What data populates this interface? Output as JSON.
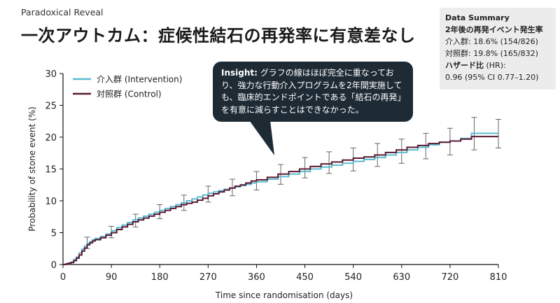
{
  "header": {
    "eyebrow": "Paradoxical Reveal",
    "title": "一次アウトカム：症候性結石の再発率に有意差なし"
  },
  "summary": {
    "heading": "Data Summary",
    "subheading": "2年後の再発イベント発生率",
    "intervention": "介入群: 18.6% (154/826)",
    "control": "対照群: 19.8% (165/832)",
    "hr_label": "ハザード比",
    "hr_suffix": " (HR):",
    "hr_value": "0.96 (95% CI 0.77–1.20)"
  },
  "callout": {
    "lead": "Insight:",
    "text": " グラフの線はほぼ完全に重なっており、強力な行動介入プログラムを2年間実施しても、臨床的エンドポイントである「結石の再発」を有意に減らすことはできなかった。"
  },
  "colors": {
    "intervention": "#5bbcd0",
    "control": "#5a1a33",
    "error_bar": "#666666",
    "axis": "#111111"
  },
  "chart_data": {
    "type": "line",
    "step": true,
    "xlabel": "Time since randomisation (days)",
    "ylabel": "Probability of stone event (%)",
    "xlim": [
      0,
      810
    ],
    "ylim": [
      0,
      30
    ],
    "xticks": [
      0,
      90,
      180,
      270,
      360,
      450,
      540,
      630,
      720,
      810
    ],
    "yticks": [
      0,
      5,
      10,
      15,
      20,
      25,
      30
    ],
    "legend_position": "top-left",
    "series": [
      {
        "name": "介入群 (Intervention)",
        "color_key": "intervention",
        "x": [
          0,
          5,
          10,
          15,
          20,
          25,
          30,
          35,
          40,
          45,
          50,
          55,
          60,
          70,
          80,
          90,
          100,
          110,
          120,
          130,
          140,
          150,
          160,
          170,
          180,
          190,
          200,
          210,
          220,
          230,
          240,
          250,
          260,
          270,
          280,
          290,
          300,
          310,
          320,
          330,
          340,
          350,
          360,
          380,
          400,
          420,
          440,
          460,
          480,
          500,
          520,
          540,
          560,
          580,
          600,
          620,
          640,
          660,
          680,
          700,
          720,
          740,
          760,
          780,
          800,
          810
        ],
        "y": [
          0,
          0.1,
          0.2,
          0.4,
          0.8,
          1.2,
          1.8,
          2.4,
          2.9,
          3.3,
          3.6,
          3.9,
          4.1,
          4.4,
          4.8,
          5.3,
          5.8,
          6.2,
          6.6,
          7.0,
          7.3,
          7.6,
          7.9,
          8.2,
          8.5,
          8.8,
          9.1,
          9.4,
          9.7,
          10.0,
          10.3,
          10.6,
          10.9,
          11.2,
          11.4,
          11.6,
          11.8,
          12.0,
          12.2,
          12.4,
          12.6,
          12.8,
          13.0,
          13.4,
          13.8,
          14.2,
          14.6,
          15.0,
          15.3,
          15.6,
          15.9,
          16.2,
          16.5,
          16.8,
          17.2,
          17.6,
          18.0,
          18.4,
          18.8,
          19.2,
          19.4,
          19.8,
          20.6,
          20.6,
          20.6,
          20.6
        ]
      },
      {
        "name": "対照群 (Control)",
        "color_key": "control",
        "x": [
          0,
          5,
          10,
          15,
          20,
          25,
          30,
          35,
          40,
          45,
          50,
          55,
          60,
          70,
          80,
          90,
          100,
          110,
          120,
          130,
          140,
          150,
          160,
          170,
          180,
          190,
          200,
          210,
          220,
          230,
          240,
          250,
          260,
          270,
          280,
          290,
          300,
          310,
          320,
          330,
          340,
          350,
          360,
          380,
          400,
          420,
          440,
          460,
          480,
          500,
          520,
          540,
          560,
          580,
          600,
          620,
          640,
          660,
          680,
          700,
          720,
          740,
          760,
          780,
          800,
          810
        ],
        "y": [
          0,
          0.1,
          0.2,
          0.3,
          0.6,
          1.0,
          1.5,
          2.1,
          2.6,
          3.1,
          3.4,
          3.7,
          3.9,
          4.2,
          4.6,
          5.0,
          5.5,
          5.9,
          6.3,
          6.7,
          7.0,
          7.3,
          7.6,
          7.9,
          8.2,
          8.5,
          8.8,
          9.1,
          9.4,
          9.6,
          9.8,
          10.1,
          10.4,
          10.8,
          11.1,
          11.4,
          11.7,
          12.0,
          12.3,
          12.5,
          12.8,
          13.1,
          13.3,
          13.7,
          14.2,
          14.6,
          15.0,
          15.4,
          15.8,
          16.1,
          16.4,
          16.7,
          16.9,
          17.2,
          17.6,
          18.0,
          18.4,
          18.7,
          19.0,
          19.2,
          19.4,
          19.7,
          20.1,
          20.1,
          20.1,
          20.1
        ]
      }
    ],
    "error_bars": [
      {
        "x": 45,
        "y": 3.3,
        "low": 2.5,
        "high": 4.3
      },
      {
        "x": 90,
        "y": 5.1,
        "low": 4.2,
        "high": 6.0
      },
      {
        "x": 135,
        "y": 6.9,
        "low": 5.9,
        "high": 7.9
      },
      {
        "x": 180,
        "y": 8.3,
        "low": 7.2,
        "high": 9.4
      },
      {
        "x": 225,
        "y": 9.7,
        "low": 8.5,
        "high": 10.9
      },
      {
        "x": 270,
        "y": 11.0,
        "low": 9.8,
        "high": 12.3
      },
      {
        "x": 315,
        "y": 12.1,
        "low": 10.8,
        "high": 13.4
      },
      {
        "x": 360,
        "y": 13.1,
        "low": 11.7,
        "high": 14.6
      },
      {
        "x": 405,
        "y": 14.1,
        "low": 12.6,
        "high": 15.7
      },
      {
        "x": 450,
        "y": 15.2,
        "low": 13.6,
        "high": 16.8
      },
      {
        "x": 495,
        "y": 16.0,
        "low": 14.3,
        "high": 17.7
      },
      {
        "x": 540,
        "y": 16.5,
        "low": 14.7,
        "high": 18.3
      },
      {
        "x": 585,
        "y": 17.2,
        "low": 15.4,
        "high": 19.0
      },
      {
        "x": 630,
        "y": 17.8,
        "low": 15.9,
        "high": 19.7
      },
      {
        "x": 675,
        "y": 18.6,
        "low": 16.6,
        "high": 20.6
      },
      {
        "x": 720,
        "y": 19.3,
        "low": 17.2,
        "high": 21.4
      },
      {
        "x": 765,
        "y": 20.6,
        "low": 18.0,
        "high": 23.1
      },
      {
        "x": 810,
        "y": 20.4,
        "low": 18.3,
        "high": 22.8
      }
    ]
  }
}
